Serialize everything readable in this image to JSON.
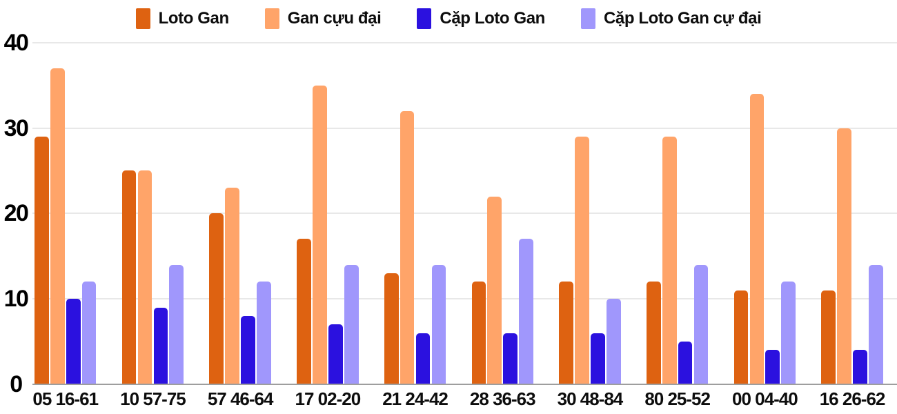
{
  "chart_data": {
    "type": "bar",
    "title": "",
    "xlabel": "",
    "ylabel": "",
    "categories": [
      "05 16-61",
      "10 57-75",
      "57 46-64",
      "17 02-20",
      "21 24-42",
      "28 36-63",
      "30 48-84",
      "80 25-52",
      "00 04-40",
      "16 26-62"
    ],
    "series": [
      {
        "name": "Loto Gan",
        "color": "#de6211",
        "values": [
          29,
          25,
          20,
          17,
          13,
          12,
          12,
          12,
          11,
          11
        ]
      },
      {
        "name": "Gan cựu đại",
        "color": "#ffa469",
        "values": [
          37,
          25,
          23,
          35,
          32,
          22,
          29,
          29,
          34,
          30
        ]
      },
      {
        "name": "Cặp Loto Gan",
        "color": "#2b11df",
        "values": [
          10,
          9,
          8,
          7,
          6,
          6,
          6,
          5,
          4,
          4
        ]
      },
      {
        "name": "Cặp Loto Gan cự đại",
        "color": "#a097fc",
        "values": [
          12,
          14,
          12,
          14,
          14,
          17,
          10,
          14,
          12,
          14
        ]
      }
    ],
    "yticks": [
      0,
      10,
      20,
      30,
      40
    ],
    "ylim": [
      0,
      40
    ],
    "grid": true,
    "legend_position": "top",
    "colors": {
      "background": "#ffffff",
      "gridline": "#e8e8e8",
      "baseline": "#9e9e9e",
      "text": "#0d0d0d"
    }
  }
}
